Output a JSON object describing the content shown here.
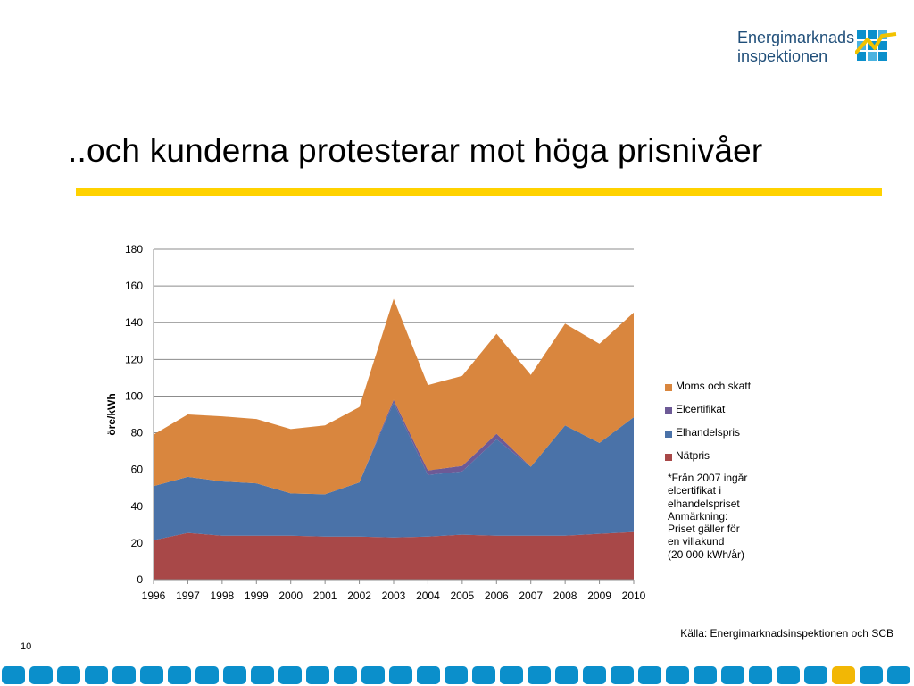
{
  "logo": {
    "line1": "Energimarknads",
    "line2": "inspektionen"
  },
  "slide": {
    "title": "..och kunderna protesterar mot höga prisnivåer",
    "note_lines": [
      "*Från 2007 ingår",
      "elcertifikat i",
      "elhandelspriset",
      "Anmärkning:",
      "Priset gäller för",
      "en villakund",
      "(20 000 kWh/år)"
    ],
    "source": "Källa: Energimarknadsinspektionen och SCB",
    "page_number": "10"
  },
  "colors": {
    "accent_yellow": "#ffd200",
    "footer_blue": "#0b8fcb",
    "footer_yellow": "#f2b705",
    "brand_blue": "#1f4e79"
  },
  "chart_data": {
    "type": "area",
    "stacked": true,
    "title": "",
    "xlabel": "",
    "ylabel": "öre/kWh",
    "x": [
      "1996",
      "1997",
      "1998",
      "1999",
      "2000",
      "2001",
      "2002",
      "2003",
      "2004",
      "2005",
      "2006",
      "2007",
      "2008",
      "2009",
      "2010"
    ],
    "ylim": [
      0,
      180
    ],
    "yticks": [
      0,
      20,
      40,
      60,
      80,
      100,
      120,
      140,
      160,
      180
    ],
    "grid": true,
    "legend_position": "right",
    "series": [
      {
        "name": "Nätpris",
        "color": "#a84848",
        "values": [
          21.5,
          25.5,
          24,
          24,
          24,
          23.5,
          23.5,
          23,
          23.5,
          24.5,
          24,
          24,
          24,
          25,
          26
        ]
      },
      {
        "name": "Elhandelspris",
        "color": "#4a72a8",
        "values": [
          29.5,
          30.5,
          29.5,
          28.5,
          23,
          23,
          29.5,
          73.5,
          33.5,
          34.5,
          52.5,
          37.5,
          60,
          49.5,
          62.5
        ]
      },
      {
        "name": "Elcertifikat",
        "color": "#6d5a96",
        "values": [
          0,
          0,
          0,
          0,
          0,
          0,
          0,
          1.5,
          2.5,
          3,
          3,
          0,
          0,
          0,
          0
        ]
      },
      {
        "name": "Moms och skatt",
        "color": "#d9863e",
        "values": [
          28,
          34,
          35.5,
          35,
          35,
          37.5,
          41,
          55,
          46.5,
          49,
          54.5,
          50,
          55.5,
          54,
          57
        ]
      }
    ],
    "legend_order": [
      "Moms och skatt",
      "Elcertifikat",
      "Elhandelspris",
      "Nätpris"
    ]
  }
}
